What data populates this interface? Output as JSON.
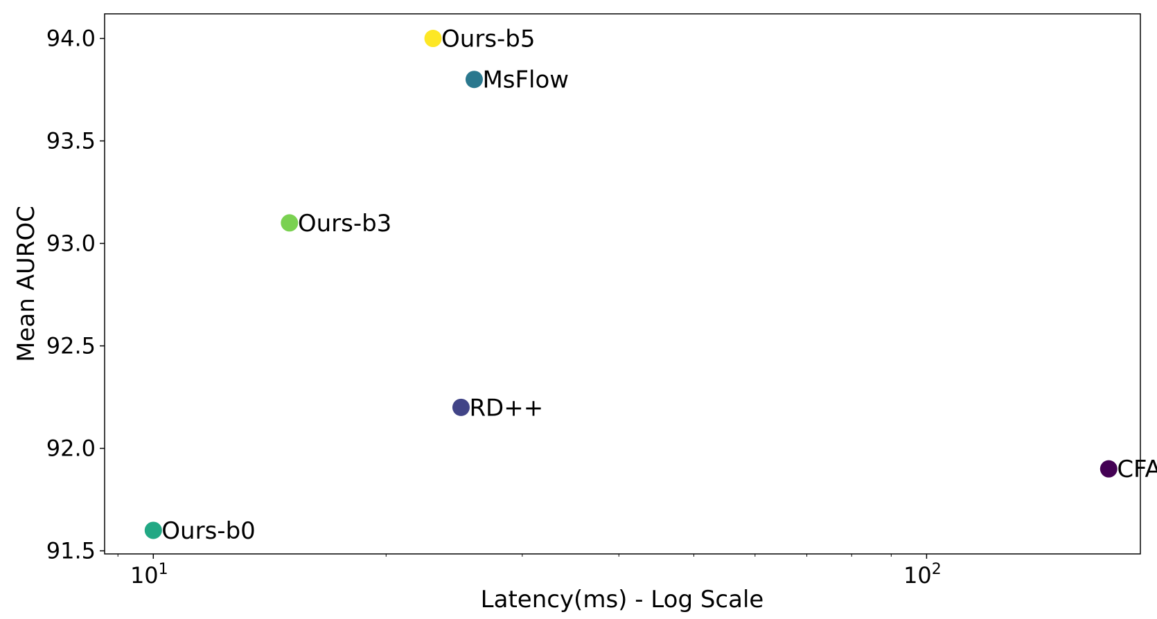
{
  "chart_data": {
    "type": "scatter",
    "title": "",
    "xlabel": "Latency(ms) - Log Scale",
    "ylabel": "Mean AUROC",
    "xscale": "log",
    "xlim": [
      8.65,
      189
    ],
    "ylim": [
      91.485,
      94.12
    ],
    "x_ticks": [
      {
        "value": 10,
        "base": "10",
        "exp": "1"
      },
      {
        "value": 100,
        "base": "10",
        "exp": "2"
      }
    ],
    "y_ticks": [
      {
        "value": 91.5,
        "label": "91.5"
      },
      {
        "value": 92.0,
        "label": "92.0"
      },
      {
        "value": 92.5,
        "label": "92.5"
      },
      {
        "value": 93.0,
        "label": "93.0"
      },
      {
        "value": 93.5,
        "label": "93.5"
      },
      {
        "value": 94.0,
        "label": "94.0"
      }
    ],
    "grid": false,
    "legend": "none",
    "points": [
      {
        "label": "Ours-b5",
        "x": 23.0,
        "y": 94.0,
        "color": "#fde725"
      },
      {
        "label": "MsFlow",
        "x": 26.0,
        "y": 93.8,
        "color": "#2a788e"
      },
      {
        "label": "Ours-b3",
        "x": 15.0,
        "y": 93.1,
        "color": "#7ad151"
      },
      {
        "label": "RD++",
        "x": 25.0,
        "y": 92.2,
        "color": "#414487"
      },
      {
        "label": "CFA",
        "x": 172.0,
        "y": 91.9,
        "color": "#440154"
      },
      {
        "label": "Ours-b0",
        "x": 10.0,
        "y": 91.6,
        "color": "#22a884"
      }
    ]
  }
}
